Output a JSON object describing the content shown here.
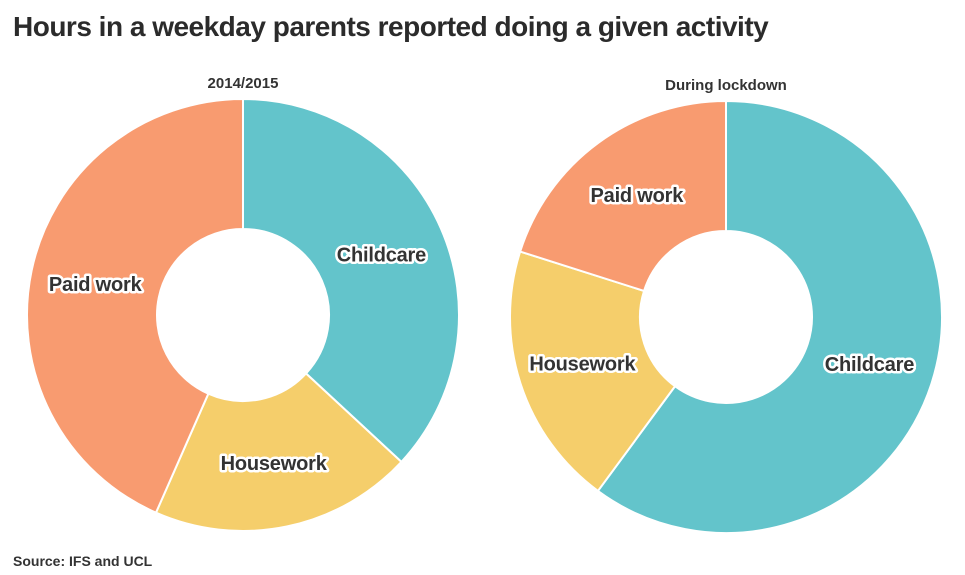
{
  "title": "Hours in a weekday parents reported doing a given activity",
  "source": "Source: IFS and UCL",
  "colors": {
    "childcare": "#63C4CB",
    "housework": "#F5CE6B",
    "paid_work": "#F89B70",
    "title_text": "#2B2B2B",
    "label_text": "#333333",
    "label_outline": "#FFFFFF",
    "background": "#FFFFFF"
  },
  "chart_data": [
    {
      "type": "pie",
      "title": "2014/2015",
      "donut": true,
      "hole_ratio": 0.4,
      "start_angle_deg": 0,
      "direction": "clockwise",
      "slices": [
        {
          "label": "Childcare",
          "share_pct": 36.9,
          "color": "#63C4CB"
        },
        {
          "label": "Housework",
          "share_pct": 19.7,
          "color": "#F5CE6B"
        },
        {
          "label": "Paid work",
          "share_pct": 43.4,
          "color": "#F89B70"
        }
      ]
    },
    {
      "type": "pie",
      "title": "During lockdown",
      "donut": true,
      "hole_ratio": 0.4,
      "start_angle_deg": 0,
      "direction": "clockwise",
      "slices": [
        {
          "label": "Childcare",
          "share_pct": 60.1,
          "color": "#63C4CB"
        },
        {
          "label": "Housework",
          "share_pct": 19.8,
          "color": "#F5CE6B"
        },
        {
          "label": "Paid work",
          "share_pct": 20.1,
          "color": "#F89B70"
        }
      ]
    }
  ]
}
